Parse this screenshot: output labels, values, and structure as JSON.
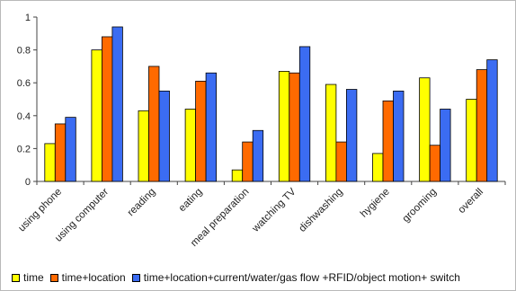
{
  "chart_data": {
    "type": "bar",
    "title": "",
    "xlabel": "",
    "ylabel": "",
    "ylim": [
      0,
      1
    ],
    "yticks": [
      0,
      0.2,
      0.4,
      0.6,
      0.8,
      1
    ],
    "ytick_labels": [
      "0",
      "0.2",
      "0.4",
      "0.6",
      "0.8",
      "1"
    ],
    "grid": false,
    "legend_position": "bottom",
    "categories": [
      "using phone",
      "using computer",
      "reading",
      "eating",
      "meal preparation",
      "watching TV",
      "dishwashing",
      "hygiene",
      "grooming",
      "overall"
    ],
    "series": [
      {
        "name": "time",
        "color": "#ffff00",
        "values": [
          0.23,
          0.8,
          0.43,
          0.44,
          0.07,
          0.67,
          0.59,
          0.17,
          0.63,
          0.5
        ]
      },
      {
        "name": "time+location",
        "color": "#ff6a00",
        "values": [
          0.35,
          0.88,
          0.7,
          0.61,
          0.24,
          0.66,
          0.24,
          0.49,
          0.22,
          0.68
        ]
      },
      {
        "name": "time+location+current/water/gas flow +RFID/object motion+ switch",
        "color": "#3b6cf2",
        "values": [
          0.39,
          0.94,
          0.55,
          0.66,
          0.31,
          0.82,
          0.56,
          0.55,
          0.44,
          0.74
        ]
      }
    ]
  }
}
